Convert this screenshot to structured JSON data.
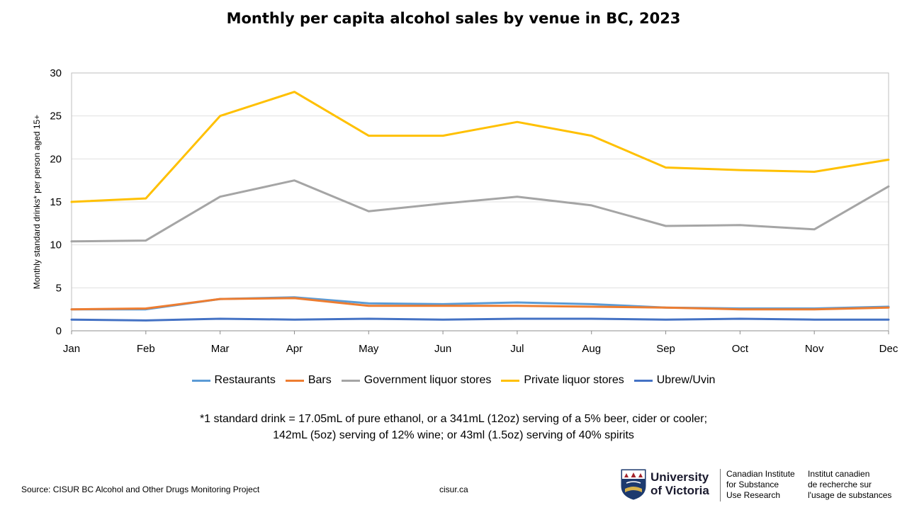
{
  "chart_data": {
    "type": "line",
    "title": "Monthly per capita alcohol sales by venue in BC, 2023",
    "xlabel": "",
    "ylabel": "Monthly standard drinks* per person aged 15+",
    "categories": [
      "Jan",
      "Feb",
      "Mar",
      "Apr",
      "May",
      "Jun",
      "Jul",
      "Aug",
      "Sep",
      "Oct",
      "Nov",
      "Dec"
    ],
    "ylim": [
      0,
      30
    ],
    "yticks": [
      0,
      5,
      10,
      15,
      20,
      25,
      30
    ],
    "grid": true,
    "legend_position": "bottom",
    "series": [
      {
        "name": "Restaurants",
        "color": "#5B9BD5",
        "values": [
          2.5,
          2.5,
          3.7,
          3.9,
          3.2,
          3.1,
          3.3,
          3.1,
          2.7,
          2.6,
          2.6,
          2.8
        ]
      },
      {
        "name": "Bars",
        "color": "#ED7D31",
        "values": [
          2.5,
          2.6,
          3.7,
          3.8,
          2.9,
          2.9,
          2.9,
          2.8,
          2.7,
          2.5,
          2.5,
          2.7
        ]
      },
      {
        "name": "Government liquor stores",
        "color": "#A5A5A5",
        "values": [
          10.4,
          10.5,
          15.6,
          17.5,
          13.9,
          14.8,
          15.6,
          14.6,
          12.2,
          12.3,
          11.8,
          16.8
        ]
      },
      {
        "name": "Private liquor stores",
        "color": "#FFC000",
        "values": [
          15.0,
          15.4,
          25.0,
          27.8,
          22.7,
          22.7,
          24.3,
          22.7,
          19.0,
          18.7,
          18.5,
          19.9
        ]
      },
      {
        "name": "Ubrew/Uvin",
        "color": "#4472C4",
        "values": [
          1.3,
          1.2,
          1.4,
          1.3,
          1.4,
          1.3,
          1.4,
          1.4,
          1.3,
          1.4,
          1.3,
          1.3
        ]
      }
    ]
  },
  "footnote": {
    "line1": "*1 standard drink = 17.05mL of pure ethanol, or a 341mL (12oz) serving of a 5% beer, cider or cooler;",
    "line2": "142mL (5oz) serving of 12% wine; or 43ml (1.5oz) serving of 40% spirits"
  },
  "source": "Source: CISUR BC Alcohol and Other Drugs Monitoring Project",
  "website": "cisur.ca",
  "logo": {
    "university_line1": "University",
    "university_line2": "of Victoria",
    "en_line1": "Canadian Institute",
    "en_line2": "for Substance",
    "en_line3": "Use Research",
    "fr_line1": "Institut canadien",
    "fr_line2": "de recherche sur",
    "fr_line3": "l'usage de substances"
  }
}
